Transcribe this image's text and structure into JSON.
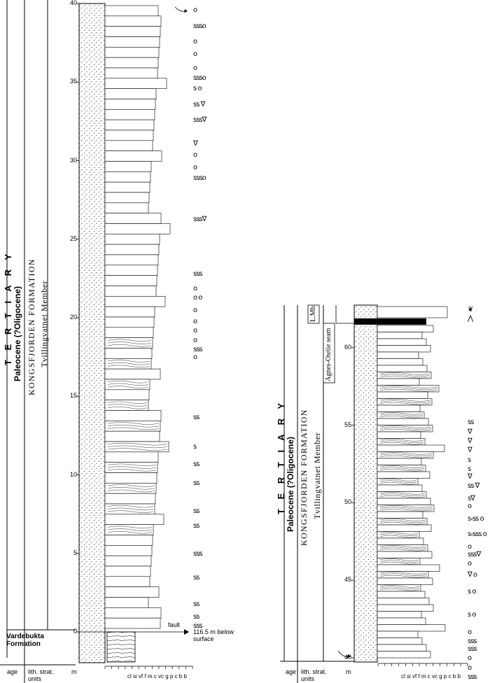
{
  "left_log": {
    "strat": {
      "system": "T E R T I A R Y",
      "series": "Paleocene (?Oligocene)",
      "formation": "KONGSFJORDEN FORMATION",
      "member": "Tvillingvatnet Member",
      "underlying_unit_line1": "Vardebukta",
      "underlying_unit_line2": "Formation"
    },
    "depth_ticks": [
      "0",
      "5",
      "10",
      "15",
      "20",
      "25",
      "30",
      "35",
      "40"
    ],
    "depth_unit": "m",
    "grain_size_scale": "cl si vf  f  m c vc g  p c b b",
    "footer": {
      "age": "age",
      "lith_line1": "lith. strat.",
      "lith_line2": "units"
    },
    "fault_label": "fault",
    "fault_note_line1": "116.5 m below",
    "fault_note_line2": "surface",
    "symbols": [
      {
        "depth": 39.5,
        "glyph": "o"
      },
      {
        "depth": 38.5,
        "glyph": "ꜱꜱꜱo"
      },
      {
        "depth": 37.5,
        "glyph": "o"
      },
      {
        "depth": 36.7,
        "glyph": "o"
      },
      {
        "depth": 35.8,
        "glyph": "o"
      },
      {
        "depth": 35.2,
        "glyph": "ꜱꜱꜱo"
      },
      {
        "depth": 34.5,
        "glyph": "ꜱ o"
      },
      {
        "depth": 33.5,
        "glyph": "ꜱꜱ ∇"
      },
      {
        "depth": 32.5,
        "glyph": "ꜱꜱꜱ∇"
      },
      {
        "depth": 31.0,
        "glyph": "∇"
      },
      {
        "depth": 30.3,
        "glyph": "o"
      },
      {
        "depth": 29.5,
        "glyph": "o"
      },
      {
        "depth": 28.8,
        "glyph": "ꜱꜱꜱo"
      },
      {
        "depth": 26.2,
        "glyph": "ꜱꜱꜱ∇"
      },
      {
        "depth": 22.7,
        "glyph": "ꜱꜱꜱ"
      },
      {
        "depth": 21.8,
        "glyph": "o"
      },
      {
        "depth": 21.2,
        "glyph": "o   o"
      },
      {
        "depth": 20.4,
        "glyph": "o"
      },
      {
        "depth": 19.7,
        "glyph": "o"
      },
      {
        "depth": 19.1,
        "glyph": "o"
      },
      {
        "depth": 18.5,
        "glyph": "o"
      },
      {
        "depth": 17.9,
        "glyph": "ꜱꜱꜱ"
      },
      {
        "depth": 17.4,
        "glyph": "o"
      },
      {
        "depth": 13.6,
        "glyph": "ꜱꜱ"
      },
      {
        "depth": 11.7,
        "glyph": "ꜱ"
      },
      {
        "depth": 10.6,
        "glyph": "ꜱꜱ"
      },
      {
        "depth": 9.4,
        "glyph": "ꜱꜱ"
      },
      {
        "depth": 7.6,
        "glyph": "ꜱꜱ"
      },
      {
        "depth": 6.7,
        "glyph": "ꜱꜱ"
      },
      {
        "depth": 4.9,
        "glyph": "ꜱꜱꜱ"
      },
      {
        "depth": 3.4,
        "glyph": "ꜱꜱ"
      },
      {
        "depth": 1.7,
        "glyph": "ꜱꜱ"
      },
      {
        "depth": 0.9,
        "glyph": "ꜱꜱ"
      },
      {
        "depth": 0.3,
        "glyph": "ꜱꜱꜱ"
      }
    ]
  },
  "right_log": {
    "strat": {
      "system": "T E R T I A R Y",
      "series": "Paleocene (?Oligocene)",
      "formation": "KONGSFJORDEN FORMATION",
      "member": "Tvillingvatnet Member",
      "upper_member": "L.Mb.",
      "seam": "Agnes-Otelie seam"
    },
    "depth_ticks": [
      "40",
      "45",
      "50",
      "55",
      "60"
    ],
    "depth_unit": "m",
    "grain_size_scale": "cl si vf  f  m c vc g  p c b b",
    "footer": {
      "age": "age",
      "lith_line1": "lith. strat.",
      "lith_line2": "units"
    },
    "symbols": [
      {
        "depth": 62.4,
        "glyph": "❦"
      },
      {
        "depth": 61.8,
        "glyph": "⋀"
      },
      {
        "depth": 55.1,
        "glyph": "ꜱꜱ"
      },
      {
        "depth": 54.5,
        "glyph": "∇"
      },
      {
        "depth": 53.9,
        "glyph": "∇"
      },
      {
        "depth": 53.3,
        "glyph": "∇"
      },
      {
        "depth": 52.7,
        "glyph": "ꜱ"
      },
      {
        "depth": 52.1,
        "glyph": "ꜱ"
      },
      {
        "depth": 51.6,
        "glyph": "∇"
      },
      {
        "depth": 51.0,
        "glyph": "ꜱꜱ ∇"
      },
      {
        "depth": 50.2,
        "glyph": "ꜱ∇"
      },
      {
        "depth": 49.7,
        "glyph": "o"
      },
      {
        "depth": 48.9,
        "glyph": "ꜱ꞊ꜱꜱ  o"
      },
      {
        "depth": 47.9,
        "glyph": "ꜱ꞊ꜱꜱꜱ o"
      },
      {
        "depth": 47.1,
        "glyph": "o"
      },
      {
        "depth": 46.6,
        "glyph": "ꜱꜱꜱ∇"
      },
      {
        "depth": 46.0,
        "glyph": "o"
      },
      {
        "depth": 45.3,
        "glyph": "∇  o"
      },
      {
        "depth": 44.2,
        "glyph": "ꜱ   o"
      },
      {
        "depth": 42.7,
        "glyph": "ꜱ   o"
      },
      {
        "depth": 41.6,
        "glyph": "o"
      },
      {
        "depth": 41.0,
        "glyph": "ꜱꜱꜱ"
      },
      {
        "depth": 40.5,
        "glyph": "ꜱꜱꜱ"
      },
      {
        "depth": 39.9,
        "glyph": "o"
      },
      {
        "depth": 39.3,
        "glyph": "o"
      },
      {
        "depth": 38.7,
        "glyph": "ꜱꜱꜱ"
      }
    ]
  }
}
